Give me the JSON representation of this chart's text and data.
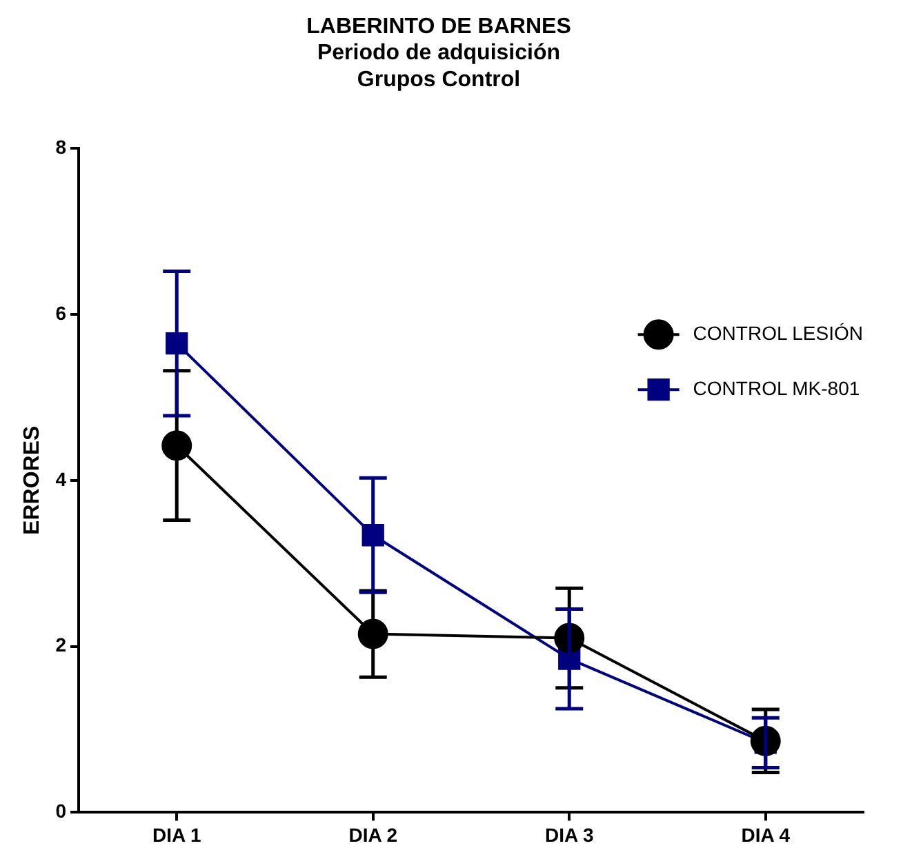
{
  "chart_data": {
    "type": "line",
    "title": "LABERINTO DE BARNES",
    "subtitle": "Periodo de adquisición\nGrupos Control",
    "ylabel": "ERRORES",
    "categories": [
      "DIA 1",
      "DIA 2",
      "DIA 3",
      "DIA 4"
    ],
    "ylim": [
      0,
      8
    ],
    "yticks": [
      0,
      2,
      4,
      6,
      8
    ],
    "grid": false,
    "legend": "top right",
    "series": [
      {
        "name": "CONTROL LESIÓN",
        "color": "#000000",
        "marker": "circle",
        "values": [
          4.42,
          2.15,
          2.1,
          0.86
        ],
        "errors": [
          0.9,
          0.52,
          0.6,
          0.38
        ]
      },
      {
        "name": "CONTROL MK-801",
        "color": "#000080",
        "marker": "square",
        "values": [
          5.65,
          3.34,
          1.85,
          0.84
        ],
        "errors": [
          0.87,
          0.69,
          0.6,
          0.3
        ]
      }
    ]
  }
}
